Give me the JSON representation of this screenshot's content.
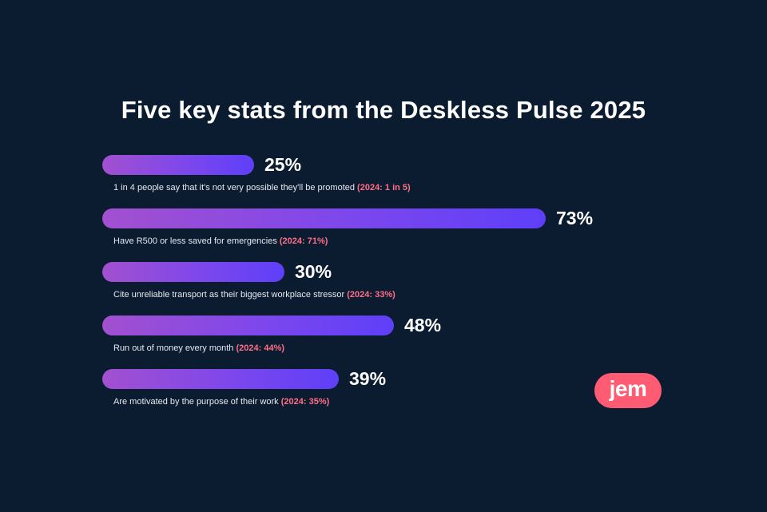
{
  "chart_data": {
    "type": "bar",
    "orientation": "horizontal",
    "title": "Five key stats from the Deskless Pulse 2025",
    "xlim": [
      0,
      100
    ],
    "grid": false,
    "items": [
      {
        "value": 25,
        "value_label": "25%",
        "text": "1 in 4 people say that it's not very possible they'll be promoted",
        "prev_label": "(2024: 1 in 5)"
      },
      {
        "value": 73,
        "value_label": "73%",
        "text": "Have R500 or less saved for emergencies",
        "prev_label": "(2024: 71%)"
      },
      {
        "value": 30,
        "value_label": "30%",
        "text": "Cite unreliable transport as their biggest workplace stressor",
        "prev_label": "(2024: 33%)"
      },
      {
        "value": 48,
        "value_label": "48%",
        "text": "Run out of money every month",
        "prev_label": "(2024: 44%)"
      },
      {
        "value": 39,
        "value_label": "39%",
        "text": "Are motivated by the purpose of their work",
        "prev_label": "(2024: 35%)"
      }
    ]
  },
  "logo": {
    "text": "jem"
  },
  "colors": {
    "background": "#0b1c30",
    "bar_start": "#a250cf",
    "bar_end": "#5e3ff9",
    "highlight": "#ff6f86",
    "logo_bg": "#ff5c73"
  }
}
